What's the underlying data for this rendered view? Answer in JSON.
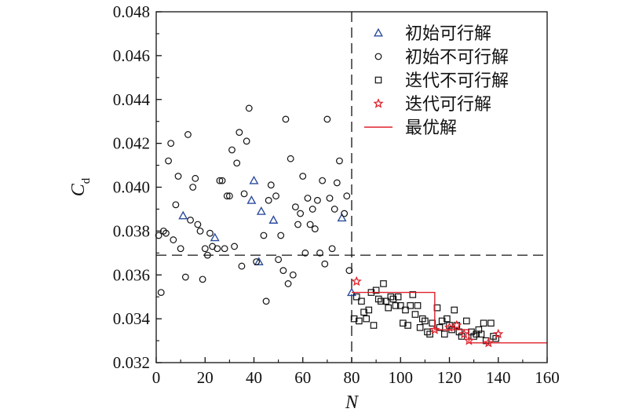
{
  "chart_data": {
    "type": "scatter",
    "title": "",
    "xlabel": "N",
    "ylabel": "C",
    "ylabel_subscript": "d",
    "xlim": [
      0,
      160
    ],
    "ylim": [
      0.032,
      0.048
    ],
    "xticks": [
      0,
      20,
      40,
      60,
      80,
      100,
      120,
      140,
      160
    ],
    "yticks": [
      0.032,
      0.034,
      0.036,
      0.038,
      0.04,
      0.042,
      0.044,
      0.046,
      0.048
    ],
    "xtick_labels": [
      "0",
      "20",
      "40",
      "60",
      "80",
      "100",
      "120",
      "140",
      "160"
    ],
    "ytick_labels": [
      "0.032",
      "0.034",
      "0.036",
      "0.038",
      "0.040",
      "0.042",
      "0.044",
      "0.046",
      "0.048"
    ],
    "grid": false,
    "legend_position": "top-right",
    "reference_lines": [
      {
        "orientation": "vertical",
        "value": 80,
        "style": "dashed"
      },
      {
        "orientation": "horizontal",
        "value": 0.0369,
        "style": "dashed"
      }
    ],
    "series": [
      {
        "name": "初始可行解",
        "marker": "triangle",
        "color": "#2b4c9c",
        "points": [
          [
            11,
            0.0387
          ],
          [
            24,
            0.0377
          ],
          [
            39,
            0.0394
          ],
          [
            40,
            0.0403
          ],
          [
            42,
            0.0366
          ],
          [
            43,
            0.0389
          ],
          [
            48,
            0.0385
          ],
          [
            76,
            0.0386
          ],
          [
            80,
            0.0352
          ]
        ]
      },
      {
        "name": "初始不可行解",
        "marker": "circle",
        "color": "#111111",
        "points": [
          [
            1,
            0.0378
          ],
          [
            2,
            0.0352
          ],
          [
            3,
            0.038
          ],
          [
            4,
            0.0379
          ],
          [
            5,
            0.0412
          ],
          [
            6,
            0.042
          ],
          [
            7,
            0.0376
          ],
          [
            8,
            0.0392
          ],
          [
            9,
            0.0405
          ],
          [
            10,
            0.0372
          ],
          [
            12,
            0.0359
          ],
          [
            13,
            0.0424
          ],
          [
            14,
            0.0385
          ],
          [
            15,
            0.04
          ],
          [
            16,
            0.0404
          ],
          [
            17,
            0.0383
          ],
          [
            18,
            0.038
          ],
          [
            19,
            0.0358
          ],
          [
            20,
            0.0372
          ],
          [
            21,
            0.0369
          ],
          [
            22,
            0.0379
          ],
          [
            23,
            0.0373
          ],
          [
            25,
            0.0372
          ],
          [
            26,
            0.0403
          ],
          [
            27,
            0.0403
          ],
          [
            28,
            0.0372
          ],
          [
            29,
            0.0396
          ],
          [
            30,
            0.0396
          ],
          [
            31,
            0.0417
          ],
          [
            32,
            0.0373
          ],
          [
            33,
            0.0411
          ],
          [
            34,
            0.0425
          ],
          [
            35,
            0.0364
          ],
          [
            36,
            0.0397
          ],
          [
            37,
            0.0421
          ],
          [
            38,
            0.0436
          ],
          [
            41,
            0.0366
          ],
          [
            44,
            0.0378
          ],
          [
            45,
            0.0348
          ],
          [
            46,
            0.0394
          ],
          [
            47,
            0.0401
          ],
          [
            49,
            0.0396
          ],
          [
            50,
            0.0367
          ],
          [
            51,
            0.0378
          ],
          [
            52,
            0.0362
          ],
          [
            53,
            0.0431
          ],
          [
            54,
            0.0356
          ],
          [
            55,
            0.0413
          ],
          [
            56,
            0.036
          ],
          [
            57,
            0.0391
          ],
          [
            58,
            0.0383
          ],
          [
            59,
            0.0388
          ],
          [
            60,
            0.0405
          ],
          [
            61,
            0.037
          ],
          [
            62,
            0.0395
          ],
          [
            63,
            0.0383
          ],
          [
            64,
            0.039
          ],
          [
            65,
            0.0381
          ],
          [
            66,
            0.0394
          ],
          [
            67,
            0.037
          ],
          [
            68,
            0.0403
          ],
          [
            69,
            0.0365
          ],
          [
            70,
            0.0431
          ],
          [
            71,
            0.0395
          ],
          [
            72,
            0.0372
          ],
          [
            73,
            0.039
          ],
          [
            74,
            0.0402
          ],
          [
            75,
            0.0412
          ],
          [
            77,
            0.0388
          ],
          [
            78,
            0.0396
          ],
          [
            79,
            0.0362
          ]
        ]
      },
      {
        "name": "迭代不可行解",
        "marker": "square",
        "color": "#111111",
        "points": [
          [
            81,
            0.034
          ],
          [
            82,
            0.035
          ],
          [
            83,
            0.0339
          ],
          [
            84,
            0.0348
          ],
          [
            85,
            0.0343
          ],
          [
            86,
            0.034
          ],
          [
            87,
            0.0344
          ],
          [
            88,
            0.0352
          ],
          [
            89,
            0.0337
          ],
          [
            90,
            0.0353
          ],
          [
            91,
            0.0349
          ],
          [
            92,
            0.0348
          ],
          [
            93,
            0.0356
          ],
          [
            94,
            0.0348
          ],
          [
            95,
            0.0345
          ],
          [
            96,
            0.035
          ],
          [
            97,
            0.0349
          ],
          [
            98,
            0.0346
          ],
          [
            99,
            0.035
          ],
          [
            100,
            0.0346
          ],
          [
            101,
            0.0338
          ],
          [
            102,
            0.0344
          ],
          [
            103,
            0.0337
          ],
          [
            104,
            0.0346
          ],
          [
            105,
            0.0351
          ],
          [
            106,
            0.0342
          ],
          [
            107,
            0.0346
          ],
          [
            108,
            0.0336
          ],
          [
            109,
            0.034
          ],
          [
            110,
            0.0339
          ],
          [
            111,
            0.0334
          ],
          [
            112,
            0.0333
          ],
          [
            113,
            0.0338
          ],
          [
            115,
            0.0345
          ],
          [
            116,
            0.0336
          ],
          [
            117,
            0.0339
          ],
          [
            118,
            0.0333
          ],
          [
            119,
            0.034
          ],
          [
            120,
            0.0337
          ],
          [
            121,
            0.0335
          ],
          [
            122,
            0.0344
          ],
          [
            123,
            0.0337
          ],
          [
            124,
            0.0334
          ],
          [
            125,
            0.0332
          ],
          [
            127,
            0.0339
          ],
          [
            129,
            0.0334
          ],
          [
            130,
            0.0332
          ],
          [
            131,
            0.0333
          ],
          [
            132,
            0.0335
          ],
          [
            133,
            0.0333
          ],
          [
            134,
            0.0338
          ],
          [
            135,
            0.033
          ],
          [
            137,
            0.0338
          ],
          [
            138,
            0.0332
          ],
          [
            139,
            0.0331
          ]
        ]
      },
      {
        "name": "迭代可行解",
        "marker": "star",
        "color": "#e0202a",
        "points": [
          [
            82,
            0.0357
          ],
          [
            114,
            0.0335
          ],
          [
            120,
            0.0336
          ],
          [
            123,
            0.0337
          ],
          [
            126,
            0.0333
          ],
          [
            128,
            0.033
          ],
          [
            136,
            0.0329
          ],
          [
            140,
            0.0333
          ]
        ]
      },
      {
        "name": "最优解",
        "marker": "line",
        "color": "#e0202a",
        "points": [
          [
            80,
            0.0352
          ],
          [
            114,
            0.0352
          ],
          [
            114,
            0.0335
          ],
          [
            128,
            0.0335
          ],
          [
            128,
            0.0329
          ],
          [
            160,
            0.0329
          ]
        ]
      }
    ]
  }
}
